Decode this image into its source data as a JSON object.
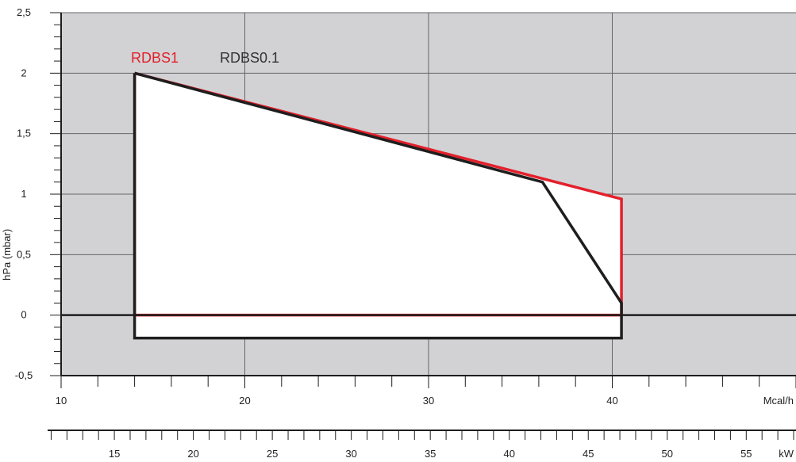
{
  "chart_data": {
    "type": "area",
    "ylabel": "hPa (mbar)",
    "x_units_primary": "Mcal/h",
    "x_units_secondary": "kW",
    "xlim": [
      10,
      50
    ],
    "ylim": [
      -0.5,
      2.5
    ],
    "secondary_xlim": [
      11.63,
      58.15
    ],
    "y_ticks": [
      -0.5,
      0,
      0.5,
      1,
      1.5,
      2,
      2.5
    ],
    "y_tick_labels": [
      "-0,5",
      "0",
      "0,5",
      "1",
      "1,5",
      "2",
      "2,5"
    ],
    "x_ticks_primary": [
      10,
      20,
      30,
      40
    ],
    "x_tick_labels_primary": [
      "10",
      "20",
      "30",
      "40"
    ],
    "x_ticks_secondary": [
      15,
      20,
      25,
      30,
      35,
      40,
      45,
      50,
      55
    ],
    "x_tick_labels_secondary": [
      "15",
      "20",
      "25",
      "30",
      "35",
      "40",
      "45",
      "50",
      "55"
    ],
    "grid": true,
    "legend_position": "top-left",
    "series": [
      {
        "name": "RDBS1",
        "color": "#e3202b",
        "points": [
          [
            14,
            2.0
          ],
          [
            40.5,
            0.96
          ],
          [
            40.5,
            0.0
          ],
          [
            14,
            0.0
          ]
        ]
      },
      {
        "name": "RDBS0.1",
        "color": "#1e1e1e",
        "points": [
          [
            14,
            2.0
          ],
          [
            36.2,
            1.1
          ],
          [
            40.5,
            0.1
          ],
          [
            40.5,
            -0.19
          ],
          [
            14,
            -0.19
          ]
        ]
      }
    ],
    "colors": {
      "background": "#d2d2d4",
      "envelope_fill": "#ffffff",
      "grid": "#666666",
      "axis": "#1e1e1e"
    }
  }
}
